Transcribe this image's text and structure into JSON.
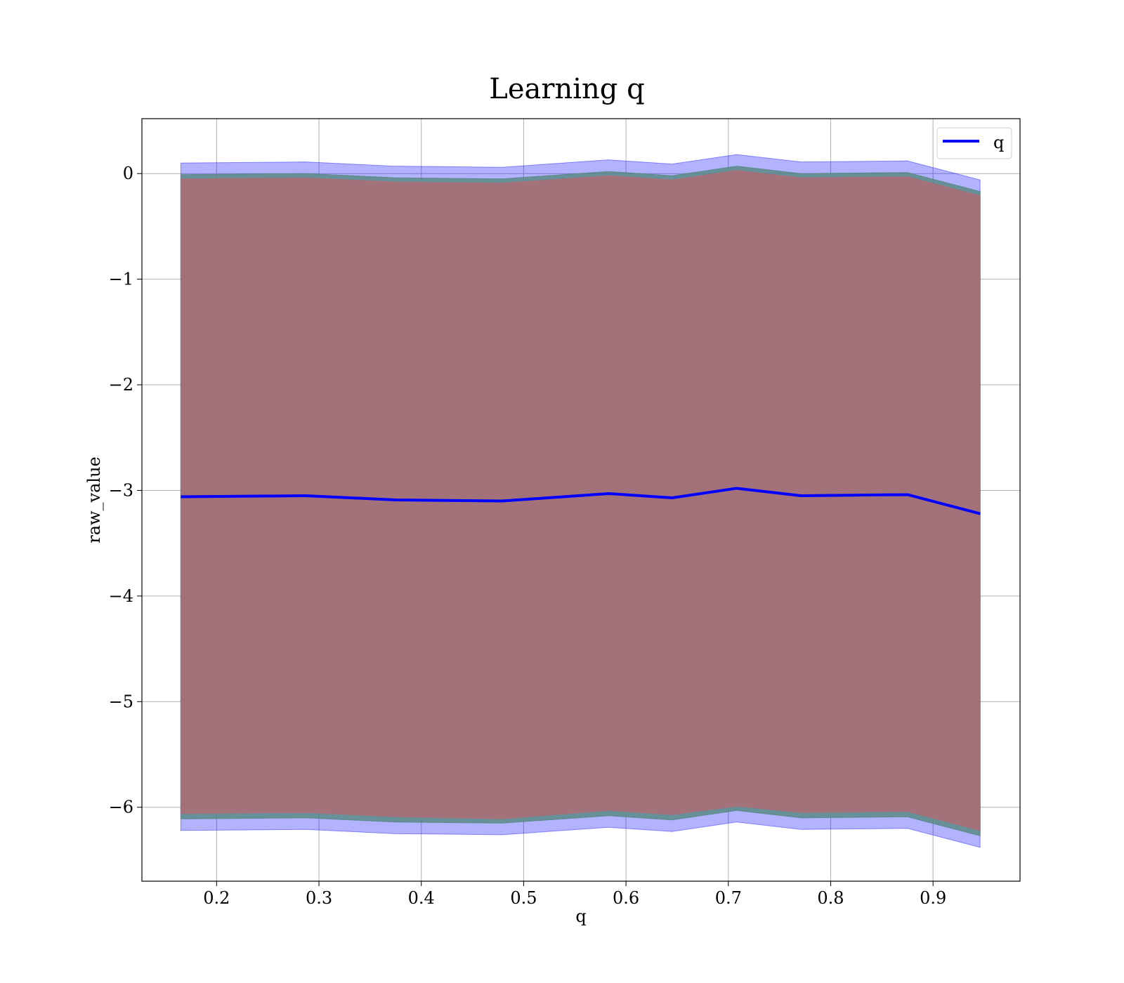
{
  "chart_data": {
    "type": "line",
    "title": "Learning q",
    "xlabel": "q",
    "ylabel": "raw_value",
    "xlim": [
      0.127,
      0.985
    ],
    "ylim": [
      -6.7,
      0.52
    ],
    "xticks": [
      0.2,
      0.3,
      0.4,
      0.5,
      0.6,
      0.7,
      0.8,
      0.9
    ],
    "xtick_labels": [
      "0.2",
      "0.3",
      "0.4",
      "0.5",
      "0.6",
      "0.7",
      "0.8",
      "0.9"
    ],
    "yticks": [
      0,
      -1,
      -2,
      -3,
      -4,
      -5,
      -6
    ],
    "ytick_labels": [
      "0",
      "−1",
      "−2",
      "−3",
      "−4",
      "−5",
      "−6"
    ],
    "grid": true,
    "legend_position": "top-right",
    "x": [
      0.165,
      0.287,
      0.375,
      0.479,
      0.583,
      0.645,
      0.708,
      0.771,
      0.875,
      0.946
    ],
    "series": [
      {
        "name": "q",
        "color": "#0000ff",
        "values": [
          -3.06,
          -3.05,
          -3.09,
          -3.1,
          -3.03,
          -3.07,
          -2.98,
          -3.05,
          -3.04,
          -3.22
        ]
      }
    ],
    "bands": [
      {
        "color": "#0000ff",
        "opacity": 0.3,
        "lower": [
          -6.22,
          -6.21,
          -6.25,
          -6.26,
          -6.19,
          -6.23,
          -6.14,
          -6.21,
          -6.2,
          -6.38
        ],
        "upper": [
          0.1,
          0.11,
          0.07,
          0.06,
          0.13,
          0.09,
          0.18,
          0.11,
          0.12,
          -0.06
        ]
      },
      {
        "color": "#5a8a86",
        "opacity": 0.85,
        "lower": [
          -6.11,
          -6.1,
          -6.14,
          -6.15,
          -6.08,
          -6.12,
          -6.03,
          -6.1,
          -6.09,
          -6.27
        ],
        "upper": [
          -0.01,
          0.0,
          -0.04,
          -0.05,
          0.02,
          -0.02,
          0.07,
          0.0,
          0.01,
          -0.17
        ]
      },
      {
        "color": "#a2717a",
        "opacity": 1.0,
        "lower": [
          -6.06,
          -6.05,
          -6.09,
          -6.11,
          -6.03,
          -6.07,
          -5.99,
          -6.05,
          -6.04,
          -6.22
        ],
        "upper": [
          -0.05,
          -0.04,
          -0.08,
          -0.09,
          -0.02,
          -0.06,
          0.03,
          -0.04,
          -0.03,
          -0.21
        ]
      }
    ]
  }
}
